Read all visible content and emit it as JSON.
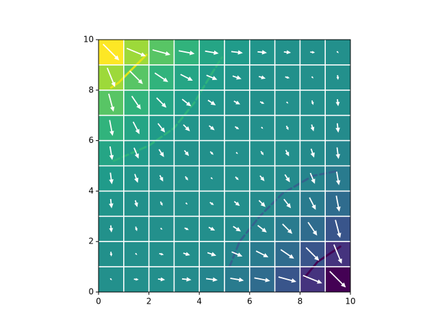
{
  "chart_data": {
    "type": "heatmap",
    "colormap": "viridis",
    "zlim": [
      -729,
      729
    ],
    "xlim": [
      0,
      10
    ],
    "ylim": [
      0,
      10
    ],
    "xticks": [
      0,
      2,
      4,
      6,
      8,
      10
    ],
    "yticks": [
      0,
      2,
      4,
      6,
      8,
      10
    ],
    "grid": true,
    "values": [
      [
        0,
        -1,
        -8,
        -27,
        -64,
        -125,
        -216,
        -343,
        -512,
        -729
      ],
      [
        1,
        0,
        -1,
        -8,
        -27,
        -64,
        -125,
        -216,
        -343,
        -512
      ],
      [
        8,
        1,
        0,
        -1,
        -8,
        -27,
        -64,
        -125,
        -216,
        -343
      ],
      [
        27,
        8,
        1,
        0,
        -1,
        -8,
        -27,
        -64,
        -125,
        -216
      ],
      [
        64,
        27,
        8,
        1,
        0,
        -1,
        -8,
        -27,
        -64,
        -125
      ],
      [
        125,
        64,
        27,
        8,
        1,
        0,
        -1,
        -8,
        -27,
        -64
      ],
      [
        216,
        125,
        64,
        27,
        8,
        1,
        0,
        -1,
        -8,
        -27
      ],
      [
        343,
        216,
        125,
        64,
        27,
        8,
        1,
        0,
        -1,
        -8
      ],
      [
        512,
        343,
        216,
        125,
        64,
        27,
        8,
        1,
        0,
        -1
      ],
      [
        729,
        512,
        343,
        216,
        125,
        64,
        27,
        8,
        1,
        0
      ]
    ],
    "u": [
      [
        0.07,
        0.19,
        0.28,
        0.37,
        0.46,
        0.54,
        0.63,
        0.71,
        0.76,
        0.64
      ],
      [
        0.02,
        0.07,
        0.18,
        0.27,
        0.35,
        0.43,
        0.49,
        0.53,
        0.52,
        0.31
      ],
      [
        0.03,
        0.05,
        0.07,
        0.17,
        0.25,
        0.31,
        0.36,
        0.39,
        0.36,
        0.19
      ],
      [
        0.04,
        0.08,
        0.08,
        0.07,
        0.16,
        0.22,
        0.26,
        0.28,
        0.25,
        0.12
      ],
      [
        0.06,
        0.12,
        0.13,
        0.11,
        0.07,
        0.13,
        0.18,
        0.2,
        0.18,
        0.09
      ],
      [
        0.09,
        0.18,
        0.2,
        0.18,
        0.13,
        0.07,
        0.11,
        0.13,
        0.12,
        0.06
      ],
      [
        0.12,
        0.25,
        0.28,
        0.26,
        0.22,
        0.16,
        0.07,
        0.08,
        0.08,
        0.04
      ],
      [
        0.19,
        0.36,
        0.39,
        0.36,
        0.31,
        0.25,
        0.17,
        0.07,
        0.05,
        0.03
      ],
      [
        0.31,
        0.52,
        0.53,
        0.49,
        0.43,
        0.35,
        0.27,
        0.18,
        0.07,
        0.02
      ],
      [
        0.64,
        0.76,
        0.71,
        0.63,
        0.54,
        0.46,
        0.37,
        0.28,
        0.19,
        0.07
      ]
    ],
    "v": [
      [
        -0.07,
        -0.02,
        -0.03,
        -0.04,
        -0.06,
        -0.09,
        -0.12,
        -0.19,
        -0.31,
        -0.64
      ],
      [
        -0.19,
        -0.07,
        -0.05,
        -0.08,
        -0.12,
        -0.18,
        -0.25,
        -0.36,
        -0.52,
        -0.76
      ],
      [
        -0.28,
        -0.18,
        -0.07,
        -0.08,
        -0.13,
        -0.2,
        -0.28,
        -0.39,
        -0.53,
        -0.71
      ],
      [
        -0.37,
        -0.27,
        -0.17,
        -0.07,
        -0.11,
        -0.18,
        -0.26,
        -0.36,
        -0.49,
        -0.63
      ],
      [
        -0.46,
        -0.35,
        -0.25,
        -0.16,
        -0.07,
        -0.13,
        -0.22,
        -0.31,
        -0.43,
        -0.54
      ],
      [
        -0.54,
        -0.43,
        -0.31,
        -0.22,
        -0.13,
        -0.07,
        -0.16,
        -0.25,
        -0.35,
        -0.46
      ],
      [
        -0.63,
        -0.49,
        -0.36,
        -0.26,
        -0.18,
        -0.11,
        -0.07,
        -0.17,
        -0.27,
        -0.37
      ],
      [
        -0.71,
        -0.53,
        -0.39,
        -0.28,
        -0.2,
        -0.13,
        -0.08,
        -0.07,
        -0.18,
        -0.28
      ],
      [
        -0.76,
        -0.52,
        -0.36,
        -0.25,
        -0.18,
        -0.12,
        -0.08,
        -0.05,
        -0.07,
        -0.19
      ],
      [
        -0.64,
        -0.31,
        -0.19,
        -0.12,
        -0.09,
        -0.06,
        -0.04,
        -0.03,
        -0.02,
        -0.07
      ]
    ],
    "arrow_color": "#ffffff",
    "contours": [
      {
        "color": "#e2e418",
        "linestyle": "solid",
        "x": [
          0.5,
          0.8,
          1.2,
          1.6,
          1.9
        ],
        "y": [
          8.1,
          8.3,
          8.7,
          9.1,
          9.4
        ]
      },
      {
        "color": "#2db27d",
        "linestyle": "dashed",
        "x": [
          0.6,
          2.0,
          3.0,
          3.8,
          4.4,
          4.9
        ],
        "y": [
          5.2,
          5.8,
          6.5,
          7.5,
          8.5,
          9.3
        ]
      },
      {
        "color": "#33638d",
        "linestyle": "dashed",
        "x": [
          5.2,
          5.6,
          6.4,
          7.3,
          8.5,
          9.5
        ],
        "y": [
          1.0,
          2.0,
          3.0,
          3.9,
          4.6,
          4.8
        ]
      },
      {
        "color": "#440154",
        "linestyle": "solid",
        "x": [
          8.2,
          8.7,
          9.3,
          9.6
        ],
        "y": [
          0.6,
          1.2,
          1.6,
          1.8
        ]
      }
    ]
  }
}
